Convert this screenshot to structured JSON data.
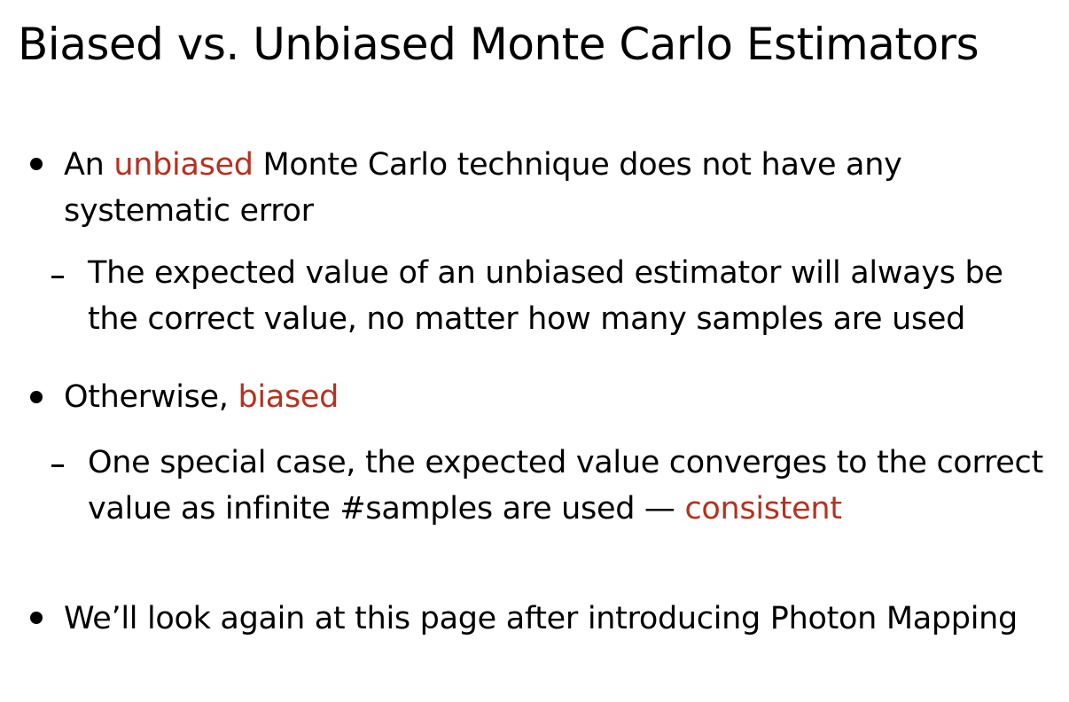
{
  "slide": {
    "title": "Biased vs. Unbiased Monte Carlo Estimators",
    "accent_color": "#b5321f",
    "bullets": [
      {
        "pre": "An ",
        "highlight": "unbiased",
        "post": " Monte Carlo technique does not have any systematic error",
        "sub": {
          "text": "The expected value of an unbiased estimator will always be the correct value, no matter how many samples are used"
        }
      },
      {
        "pre": "Otherwise, ",
        "highlight": "biased",
        "sub": {
          "pre": "One special case, the expected value converges to the correct value as infinite #samples are used — ",
          "highlight": "consistent"
        }
      },
      {
        "text": "We’ll look again at this page after introducing Photon Mapping"
      }
    ]
  }
}
